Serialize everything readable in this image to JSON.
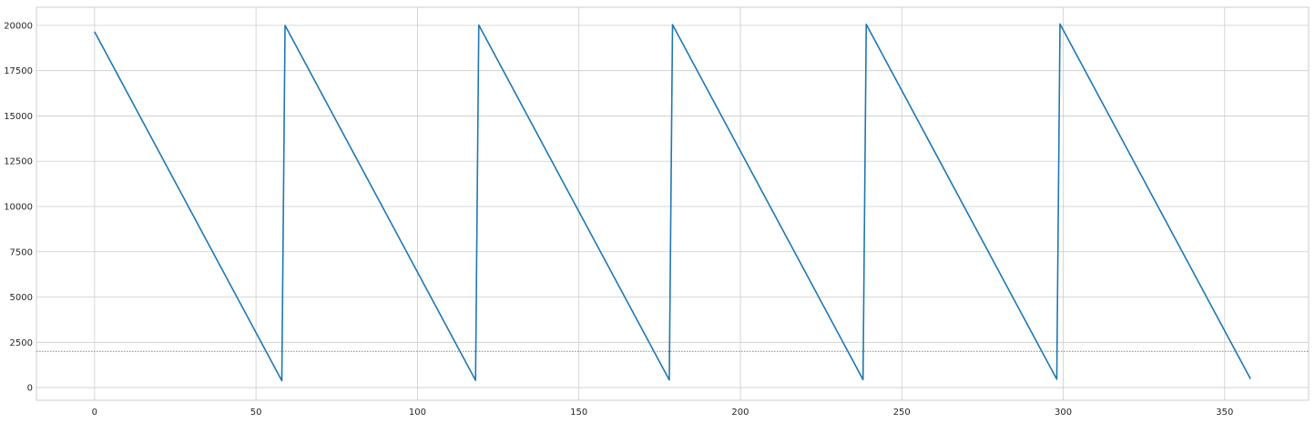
{
  "chart_data": {
    "type": "line",
    "title": "",
    "xlabel": "",
    "ylabel": "",
    "xlim": [
      -18,
      376
    ],
    "ylim": [
      -700,
      21000
    ],
    "grid": true,
    "legend": "none",
    "xticks": [
      0,
      50,
      100,
      150,
      200,
      250,
      300,
      350
    ],
    "yticks": [
      0,
      2500,
      5000,
      7500,
      10000,
      12500,
      15000,
      17500,
      20000
    ],
    "series": [
      {
        "color": "#1f77b4",
        "x": [
          0,
          58,
          59,
          118,
          119,
          178,
          179,
          238,
          239,
          298,
          299,
          358
        ],
        "y": [
          19650,
          380,
          20000,
          400,
          20020,
          420,
          20040,
          440,
          20060,
          460,
          20080,
          480
        ]
      }
    ],
    "reference_lines": [
      {
        "orientation": "horizontal",
        "y": 2000,
        "style": "dotted",
        "color": "#808080"
      }
    ]
  }
}
